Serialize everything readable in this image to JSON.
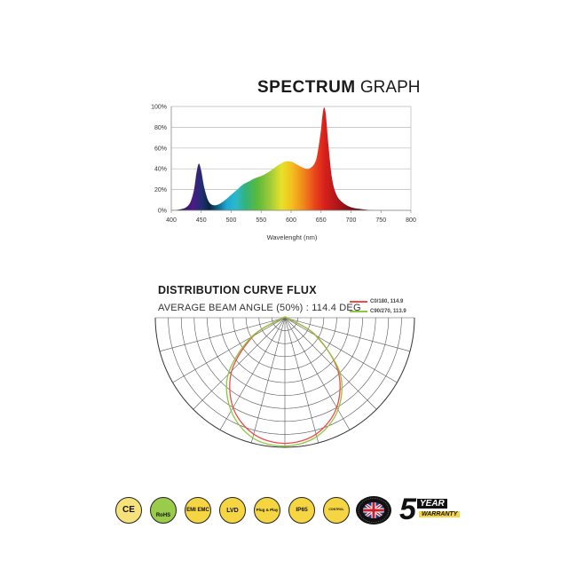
{
  "spectrum": {
    "title_bold": "SPECTRUM",
    "title_light": "GRAPH",
    "chart_data": {
      "type": "area",
      "title": "SPECTRUM GRAPH",
      "xlabel": "Wavelenght (nm)",
      "ylabel": "",
      "xlim": [
        400,
        800
      ],
      "ylim": [
        0,
        100
      ],
      "x_ticks": [
        "400",
        "450",
        "500",
        "550",
        "600",
        "650",
        "700",
        "750",
        "800"
      ],
      "y_ticks": [
        "0%",
        "20%",
        "40%",
        "60%",
        "80%",
        "100%"
      ],
      "grid": true,
      "series": [
        {
          "x": [
            400,
            415,
            425,
            432,
            438,
            442,
            446,
            450,
            455,
            462,
            470,
            480,
            490,
            500,
            510,
            520,
            530,
            540,
            550,
            560,
            570,
            580,
            590,
            600,
            610,
            620,
            630,
            640,
            645,
            650,
            652,
            655,
            658,
            662,
            668,
            675,
            685,
            700,
            720,
            740,
            760,
            780,
            800
          ],
          "y": [
            0,
            1,
            3,
            8,
            20,
            36,
            45,
            38,
            22,
            9,
            5,
            6,
            10,
            15,
            20,
            25,
            28,
            31,
            33,
            36,
            40,
            44,
            47,
            47,
            44,
            41,
            40,
            46,
            58,
            78,
            90,
            99,
            92,
            65,
            32,
            16,
            8,
            3,
            1,
            0,
            0,
            0,
            0
          ]
        }
      ]
    }
  },
  "flux": {
    "title": "DISTRIBUTION CURVE FLUX",
    "beam_angle": "AVERAGE BEAM ANGLE  (50%) : 114.4 DEG",
    "chart_data": {
      "type": "line",
      "title": "DISTRIBUTION CURVE FLUX",
      "angle_range_deg": [
        -90,
        90
      ],
      "radial_range": [
        0,
        1
      ],
      "grid": true,
      "series": [
        {
          "name": "C0/180, 114.9",
          "color": "#f04a4a",
          "angles_deg": [
            -90,
            -75,
            -60,
            -45,
            -30,
            -15,
            0,
            15,
            30,
            45,
            60,
            75,
            90
          ],
          "intensity": [
            0.0,
            0.03,
            0.28,
            0.58,
            0.8,
            0.93,
            0.97,
            0.93,
            0.8,
            0.58,
            0.28,
            0.03,
            0.0
          ]
        },
        {
          "name": "C90/270, 113.9",
          "color": "#8dc63f",
          "angles_deg": [
            -90,
            -75,
            -60,
            -45,
            -30,
            -15,
            0,
            15,
            30,
            45,
            60,
            75,
            90
          ],
          "intensity": [
            0.0,
            0.02,
            0.3,
            0.62,
            0.83,
            0.96,
            0.99,
            0.95,
            0.82,
            0.6,
            0.27,
            0.02,
            0.0
          ]
        }
      ]
    }
  },
  "certifications": [
    {
      "name": "ce-mark-icon",
      "text": "CE"
    },
    {
      "name": "rohs-icon",
      "text": "RoHS"
    },
    {
      "name": "emi-emc-icon",
      "text": "EMI EMC"
    },
    {
      "name": "lvd-icon",
      "text": "LVD"
    },
    {
      "name": "plug-and-play-icon",
      "text": "Plug & Play"
    },
    {
      "name": "ip65-icon",
      "text": "IP65"
    },
    {
      "name": "control-icon",
      "text": "CONTROL"
    },
    {
      "name": "uk-flag-icon",
      "text": ""
    },
    {
      "name": "five-year-warranty-icon",
      "text": "5 YEAR WARRANTY"
    }
  ],
  "warranty": {
    "number": "5",
    "word": "YEAR",
    "sub": "WARRANTY"
  }
}
